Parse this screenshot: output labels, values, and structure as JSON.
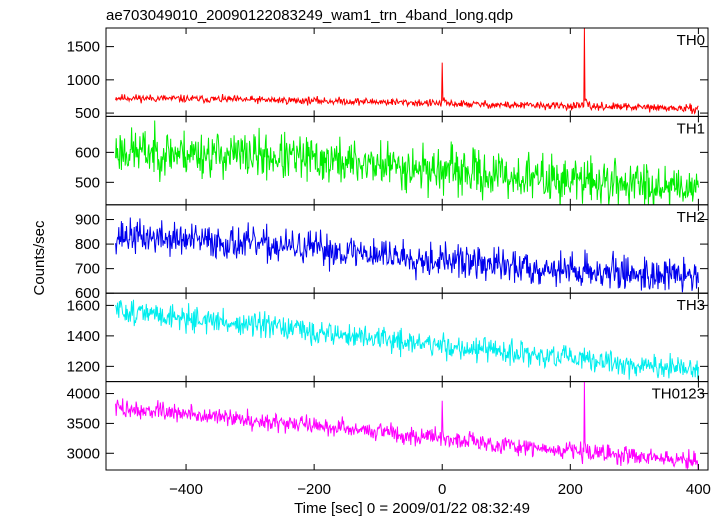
{
  "chart_data": {
    "type": "line",
    "title": "ae703049010_20090122083249_wam1_trn_4band_long.qdp",
    "xlabel": "Time [sec] 0 = 2009/01/22 08:32:49",
    "ylabel": "Counts/sec",
    "xlim": [
      -525,
      415
    ],
    "x_ticks": [
      -400,
      -200,
      0,
      200,
      400
    ],
    "x_tick_labels": [
      "−400",
      "−200",
      "0",
      "200",
      "400"
    ],
    "x_start": -510,
    "x_end": 400,
    "panels": [
      {
        "name": "TH0",
        "color": "#ff0000",
        "ylim": [
          450,
          1780
        ],
        "y_ticks": [
          500,
          1000,
          1500
        ],
        "y_tick_labels": [
          "500",
          "1000",
          "1500"
        ],
        "baseline": [
          [
            -510,
            730
          ],
          [
            -300,
            700
          ],
          [
            -100,
            670
          ],
          [
            100,
            620
          ],
          [
            300,
            590
          ],
          [
            400,
            560
          ]
        ],
        "noise": 28,
        "spikes": [
          [
            0,
            1260
          ],
          [
            222,
            1780
          ]
        ],
        "seed": 11
      },
      {
        "name": "TH1",
        "color": "#00ee00",
        "ylim": [
          425,
          720
        ],
        "y_ticks": [
          500,
          600
        ],
        "y_tick_labels": [
          "500",
          "600"
        ],
        "baseline": [
          [
            -510,
            605
          ],
          [
            -300,
            590
          ],
          [
            -100,
            560
          ],
          [
            100,
            520
          ],
          [
            300,
            495
          ],
          [
            400,
            490
          ]
        ],
        "noise": 38,
        "spikes": [],
        "seed": 23
      },
      {
        "name": "TH2",
        "color": "#0000ee",
        "ylim": [
          600,
          960
        ],
        "y_ticks": [
          600,
          700,
          800,
          900
        ],
        "y_tick_labels": [
          "600",
          "700",
          "800",
          "900"
        ],
        "baseline": [
          [
            -510,
            835
          ],
          [
            -300,
            800
          ],
          [
            -100,
            760
          ],
          [
            100,
            710
          ],
          [
            300,
            680
          ],
          [
            400,
            668
          ]
        ],
        "noise": 34,
        "spikes": [],
        "seed": 37
      },
      {
        "name": "TH3",
        "color": "#00eeee",
        "ylim": [
          1100,
          1680
        ],
        "y_ticks": [
          1200,
          1400,
          1600
        ],
        "y_tick_labels": [
          "1200",
          "1400",
          "1600"
        ],
        "baseline": [
          [
            -510,
            1570
          ],
          [
            -300,
            1470
          ],
          [
            -100,
            1380
          ],
          [
            100,
            1290
          ],
          [
            300,
            1210
          ],
          [
            400,
            1170
          ]
        ],
        "noise": 40,
        "spikes": [],
        "seed": 51
      },
      {
        "name": "TH0123",
        "color": "#ff00ff",
        "ylim": [
          2720,
          4200
        ],
        "y_ticks": [
          3000,
          3500,
          4000
        ],
        "y_tick_labels": [
          "3000",
          "3500",
          "4000"
        ],
        "baseline": [
          [
            -510,
            3760
          ],
          [
            -300,
            3560
          ],
          [
            -100,
            3370
          ],
          [
            100,
            3130
          ],
          [
            300,
            2960
          ],
          [
            400,
            2860
          ]
        ],
        "noise": 75,
        "spikes": [
          [
            0,
            3880
          ],
          [
            222,
            4200
          ]
        ],
        "seed": 73
      }
    ]
  }
}
